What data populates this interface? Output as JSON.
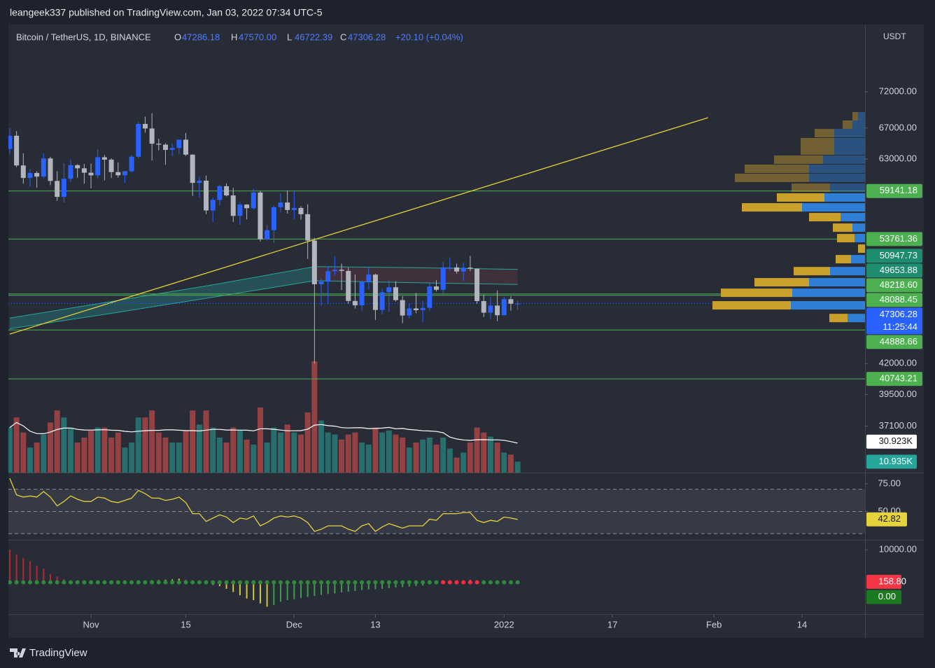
{
  "header": {
    "published": "leangeek337 published on TradingView.com, Jan 03, 2022 07:34 UTC-5",
    "symbol": "Bitcoin / TetherUS, 1D, BINANCE",
    "legend": [
      {
        "key": "O",
        "value": "47286.18"
      },
      {
        "key": "H",
        "value": "47570.00"
      },
      {
        "key": "L",
        "value": "46722.39"
      },
      {
        "key": "C",
        "value": "47306.28"
      }
    ],
    "change": "+20.10 (+0.04%)"
  },
  "price_axis": {
    "currency": "USDT"
  },
  "footer": {
    "brand": "TradingView"
  },
  "chart_data": [
    {
      "type": "candlestick",
      "log_scale": true,
      "up_color": "#2962ff",
      "down_color": "#b2b5be",
      "open": [
        64280,
        65990,
        62210,
        60690,
        61290,
        60850,
        63080,
        60330,
        58450,
        60590,
        62250,
        61860,
        61320,
        61000,
        63230,
        62930,
        61400,
        61010,
        61500,
        63300,
        67550,
        66940,
        64950,
        64830,
        64160,
        64400,
        65470,
        63560,
        60100,
        60360,
        56900,
        58100,
        59700,
        58620,
        56290,
        57570,
        57150,
        58960,
        53730,
        54720,
        57270,
        57800,
        56950,
        57180,
        56480,
        53600,
        49150,
        49400,
        50440,
        50590,
        50470,
        47550,
        47140,
        49390,
        50100,
        46710,
        48380,
        48860,
        47630,
        46200,
        46850,
        46690,
        46900,
        48940,
        48620,
        50820,
        50820,
        50410,
        50800,
        50700,
        47540,
        46460,
        47120,
        46220,
        47720,
        47286.18
      ],
      "high": [
        66990,
        66600,
        63730,
        61750,
        61490,
        63710,
        63290,
        61500,
        62500,
        62960,
        62360,
        62400,
        62420,
        64270,
        63520,
        63100,
        62600,
        61560,
        63500,
        67790,
        68530,
        69000,
        65600,
        65000,
        64970,
        65500,
        66340,
        63580,
        60800,
        60970,
        58360,
        59860,
        60050,
        59500,
        57850,
        57600,
        59400,
        59180,
        55300,
        57440,
        58870,
        59200,
        59100,
        57380,
        57600,
        53900,
        49700,
        50880,
        51950,
        51200,
        50800,
        50120,
        49500,
        50800,
        50200,
        48700,
        49500,
        49450,
        48000,
        47300,
        48300,
        47550,
        49300,
        49550,
        51380,
        51860,
        51200,
        51300,
        52000,
        50700,
        48150,
        47900,
        48550,
        47950,
        47990,
        47570
      ],
      "low": [
        63570,
        62000,
        60000,
        59670,
        59510,
        60650,
        59820,
        58000,
        57820,
        60170,
        60720,
        60000,
        59450,
        60620,
        60400,
        60680,
        60730,
        60100,
        61350,
        63120,
        66380,
        62820,
        64100,
        62300,
        63400,
        63600,
        63400,
        58570,
        58400,
        56480,
        55600,
        57440,
        58520,
        55610,
        55300,
        55900,
        57000,
        53500,
        53600,
        53330,
        56700,
        56550,
        55900,
        55860,
        51680,
        42000,
        47100,
        47250,
        50020,
        48600,
        47300,
        46850,
        46600,
        48650,
        45800,
        46300,
        46550,
        47500,
        45500,
        45950,
        46400,
        45580,
        46650,
        48450,
        48100,
        50470,
        50200,
        49450,
        50450,
        47300,
        46060,
        45900,
        45680,
        46200,
        46650,
        46722.39
      ],
      "close": [
        65990,
        62210,
        60690,
        61290,
        60850,
        63080,
        60330,
        58450,
        60590,
        62250,
        61860,
        61320,
        61000,
        63230,
        62930,
        61400,
        61010,
        61500,
        63300,
        67550,
        66940,
        64950,
        64830,
        64160,
        64400,
        65470,
        63560,
        60100,
        60360,
        56900,
        58100,
        59700,
        58620,
        56290,
        57570,
        57150,
        58960,
        53730,
        54720,
        57270,
        57800,
        56950,
        57180,
        56480,
        53600,
        49150,
        49400,
        50440,
        50590,
        50470,
        47550,
        47140,
        49390,
        50100,
        46710,
        48380,
        48860,
        47630,
        46200,
        46850,
        46690,
        46900,
        48940,
        48620,
        50820,
        50820,
        50410,
        50800,
        50700,
        47540,
        46460,
        47120,
        46220,
        47720,
        47290,
        47306.28
      ],
      "ylim": [
        33830,
        82270
      ],
      "yticks": [
        {
          "value": 37100,
          "label": "37100.00"
        },
        {
          "value": 39500,
          "label": "39500.00"
        },
        {
          "value": 42000,
          "label": "42000.00"
        },
        {
          "value": 63000,
          "label": "63000.00"
        },
        {
          "value": 67000,
          "label": "67000.00"
        },
        {
          "value": 72000,
          "label": "72000.00"
        }
      ],
      "xlim": [
        -0.2,
        126.3
      ],
      "xticks": [
        {
          "value": 12,
          "label": "Nov"
        },
        {
          "value": 26,
          "label": "15"
        },
        {
          "value": 42,
          "label": "Dec"
        },
        {
          "value": 54,
          "label": "13"
        },
        {
          "value": 73,
          "label": "2022"
        },
        {
          "value": 89,
          "label": "17"
        },
        {
          "value": 104,
          "label": "Feb"
        },
        {
          "value": 117,
          "label": "14"
        }
      ],
      "levels": [
        {
          "value": 59141.18,
          "label": "59141.18"
        },
        {
          "value": 53761.36,
          "label": "53761.36"
        },
        {
          "value": 48218.6,
          "label": "48218.60"
        },
        {
          "value": 48088.45,
          "label": "48088.45"
        },
        {
          "value": 44888.66,
          "label": "44888.66"
        },
        {
          "value": 40743.21,
          "label": "40743.21"
        }
      ],
      "level_color": "#4caf50",
      "indicator_labels": [
        {
          "value": 50947.73,
          "label": "50947.73"
        },
        {
          "value": 49653.88,
          "label": "49653.88"
        }
      ],
      "indicator_color": "#1e8c6e",
      "last_price": {
        "value": 47306.28,
        "label": "47306.28",
        "countdown": "11:25:44",
        "color": "#2962ff"
      },
      "trend_line": {
        "x": [
          0,
          103.1
        ],
        "values": [
          44530,
          68390
        ],
        "color": "#e6d23a"
      },
      "ma_band": {
        "x": [
          0,
          15,
          30,
          45,
          60,
          75
        ],
        "upper": [
          45970,
          47500,
          49100,
          50900,
          50800,
          50620
        ],
        "lower": [
          45000,
          46400,
          47900,
          49500,
          49300,
          49130
        ],
        "color": "#26a69a",
        "falling_color": "#7a3b44"
      },
      "volume": {
        "values": [
          45,
          55,
          40,
          25,
          30,
          38,
          50,
          62,
          55,
          45,
          30,
          35,
          42,
          45,
          45,
          35,
          40,
          25,
          30,
          55,
          55,
          62,
          40,
          35,
          30,
          30,
          42,
          62,
          48,
          62,
          45,
          35,
          30,
          45,
          42,
          33,
          28,
          65,
          30,
          45,
          40,
          48,
          40,
          38,
          60,
          111,
          52,
          40,
          38,
          33,
          38,
          40,
          30,
          28,
          45,
          40,
          42,
          38,
          35,
          25,
          30,
          33,
          35,
          28,
          35,
          24,
          15,
          20,
          30,
          45,
          40,
          36,
          30,
          20,
          18,
          10.935
        ],
        "ylim": [
          0,
          447
        ],
        "up_color": "#26a69a",
        "down_color": "#ef5350",
        "last_label": "10.935K",
        "ma_last": {
          "value": 30.923,
          "label": "30.923K"
        }
      },
      "volume_profile": {
        "prices": [
          68590,
          67450,
          66330,
          65150,
          64070,
          62930,
          61800,
          60700,
          59520,
          58380,
          57250,
          56150,
          54990,
          53860,
          52750,
          51660,
          50450,
          49350,
          48330,
          47140,
          45970
        ],
        "up": [
          10,
          18,
          44,
          44,
          44,
          60,
          80,
          80,
          50,
          58,
          90,
          35,
          18,
          15,
          0,
          20,
          50,
          80,
          104,
          106,
          25
        ],
        "down": [
          8,
          14,
          28,
          48,
          48,
          70,
          92,
          106,
          55,
          68,
          86,
          45,
          28,
          25,
          10,
          22,
          52,
          78,
          102,
          112,
          26
        ],
        "up_color": "#2f7fd6",
        "down_color": "#c9a02b"
      }
    },
    {
      "type": "line",
      "values": [
        80,
        65,
        63,
        64,
        63,
        68,
        63,
        55,
        59,
        64,
        61,
        59,
        59,
        63,
        62,
        59,
        58,
        60,
        62,
        69,
        66,
        62,
        62,
        60,
        61,
        63,
        58,
        48,
        48,
        41,
        44,
        47,
        45,
        40,
        44,
        43,
        46,
        37,
        40,
        44,
        46,
        45,
        46,
        44,
        40,
        32,
        34,
        37,
        37,
        37,
        34,
        32,
        37,
        39,
        32,
        36,
        39,
        37,
        35,
        37,
        37,
        37,
        43,
        42,
        48,
        48,
        48,
        49,
        49,
        42,
        40,
        42,
        41,
        45,
        44,
        42.82
      ],
      "color": "#e6d23a",
      "ylim": [
        25,
        84.4
      ],
      "yticks": [
        {
          "value": 75,
          "label": "75.00"
        },
        {
          "value": 50,
          "label": "50.00"
        }
      ],
      "band_levels": [
        70,
        50,
        30
      ],
      "value_label": "42.82"
    },
    {
      "type": "bar",
      "values": [
        10000,
        8500,
        7500,
        6500,
        5000,
        4200,
        2500,
        1800,
        1000,
        500,
        200,
        100,
        -100,
        -200,
        -300,
        -400,
        -500,
        -300,
        -200,
        300,
        500,
        600,
        700,
        800,
        900,
        1100,
        900,
        500,
        200,
        -300,
        -800,
        -1200,
        -2000,
        -3000,
        -4000,
        -5000,
        -5500,
        -6500,
        -7500,
        -7000,
        -6000,
        -5500,
        -5200,
        -4800,
        -4500,
        -4200,
        -3900,
        -3600,
        -3400,
        -3100,
        -2900,
        -2700,
        -2400,
        -2200,
        -2100,
        -2000,
        -1800,
        -1600,
        -1500,
        -1300,
        -1200,
        -1000,
        -700,
        -400,
        200,
        400,
        500,
        600,
        700,
        500,
        -200,
        -100,
        -200,
        -100,
        -50,
        158.8
      ],
      "ylim": [
        -9565,
        12826
      ],
      "yticks": [
        {
          "value": 10000,
          "label": "10000.00"
        }
      ],
      "value_label": "158.80",
      "zero_label": {
        "value": 0,
        "label": "0.00"
      },
      "palette": {
        "positive_falling": "#b22833",
        "positive_rising": "#d8c33c",
        "negative_rising": "#d8c33c",
        "negative_falling": "#3f9b4b"
      },
      "dot_color": "#2e8b3a",
      "alert_dot_color": "#ff2a3d",
      "alert_dots": [
        64,
        65,
        66,
        67,
        68,
        69
      ]
    }
  ]
}
